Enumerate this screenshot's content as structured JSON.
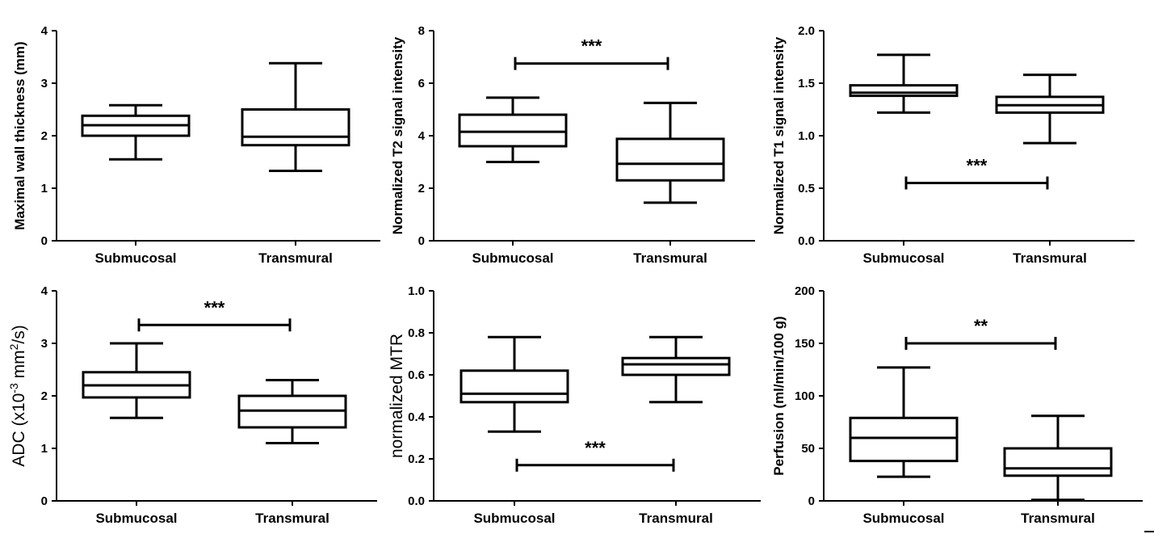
{
  "colors": {
    "ink": "#000000",
    "background": "#ffffff"
  },
  "chart_data": [
    {
      "type": "box",
      "ylabel": "Maximal wall thickness (mm)",
      "categories": [
        "Submucosal",
        "Transmural"
      ],
      "ylim": [
        0,
        4
      ],
      "yticks": [
        "0",
        "1",
        "2",
        "3",
        "4"
      ],
      "boxes": [
        {
          "min": 1.55,
          "q1": 2.0,
          "median": 2.2,
          "q3": 2.38,
          "max": 2.58
        },
        {
          "min": 1.33,
          "q1": 1.82,
          "median": 1.98,
          "q3": 2.5,
          "max": 3.38
        }
      ],
      "significance": null
    },
    {
      "type": "box",
      "ylabel": "Normalized T2 signal intensity",
      "categories": [
        "Submucosal",
        "Transmural"
      ],
      "ylim": [
        0,
        8
      ],
      "yticks": [
        "0",
        "2",
        "4",
        "6",
        "8"
      ],
      "boxes": [
        {
          "min": 3.0,
          "q1": 3.6,
          "median": 4.15,
          "q3": 4.8,
          "max": 5.45
        },
        {
          "min": 1.45,
          "q1": 2.3,
          "median": 2.93,
          "q3": 3.88,
          "max": 5.25
        }
      ],
      "significance": {
        "label": "***",
        "value": 6.75
      }
    },
    {
      "type": "box",
      "ylabel": "Normalized T1 signal intensity",
      "categories": [
        "Submucosal",
        "Transmural"
      ],
      "ylim": [
        0,
        2
      ],
      "yticks": [
        "0.0",
        "0.5",
        "1.0",
        "1.5",
        "2.0"
      ],
      "boxes": [
        {
          "min": 1.22,
          "q1": 1.38,
          "median": 1.41,
          "q3": 1.48,
          "max": 1.77
        },
        {
          "min": 0.93,
          "q1": 1.22,
          "median": 1.29,
          "q3": 1.37,
          "max": 1.58
        }
      ],
      "significance": {
        "label": "***",
        "value": 0.55
      }
    },
    {
      "type": "box",
      "ylabel_prefix": "ADC (x10",
      "ylabel_exp1": "-3",
      "ylabel_mid": " mm",
      "ylabel_exp2": "2",
      "ylabel_suffix": "/s)",
      "categories": [
        "Submucosal",
        "Transmural"
      ],
      "ylim": [
        0,
        4
      ],
      "yticks": [
        "0",
        "1",
        "2",
        "3",
        "4"
      ],
      "boxes": [
        {
          "min": 1.58,
          "q1": 1.97,
          "median": 2.2,
          "q3": 2.45,
          "max": 3.0
        },
        {
          "min": 1.1,
          "q1": 1.4,
          "median": 1.72,
          "q3": 2.0,
          "max": 2.3
        }
      ],
      "significance": {
        "label": "***",
        "value": 3.35
      }
    },
    {
      "type": "box",
      "ylabel": "normalized MTR",
      "categories": [
        "Submucosal",
        "Transmural"
      ],
      "ylim": [
        0,
        1
      ],
      "yticks": [
        "0.0",
        "0.2",
        "0.4",
        "0.6",
        "0.8",
        "1.0"
      ],
      "boxes": [
        {
          "min": 0.33,
          "q1": 0.47,
          "median": 0.51,
          "q3": 0.62,
          "max": 0.78
        },
        {
          "min": 0.47,
          "q1": 0.6,
          "median": 0.65,
          "q3": 0.68,
          "max": 0.78
        }
      ],
      "significance": {
        "label": "***",
        "value": 0.17
      }
    },
    {
      "type": "box",
      "ylabel": "Perfusion (ml/min/100 g)",
      "categories": [
        "Submucosal",
        "Transmural"
      ],
      "ylim": [
        0,
        200
      ],
      "yticks": [
        "0",
        "50",
        "100",
        "150",
        "200"
      ],
      "boxes": [
        {
          "min": 23,
          "q1": 38,
          "median": 60,
          "q3": 79,
          "max": 127
        },
        {
          "min": 1,
          "q1": 24,
          "median": 31,
          "q3": 50,
          "max": 81
        }
      ],
      "significance": {
        "label": "**",
        "value": 150
      }
    }
  ]
}
